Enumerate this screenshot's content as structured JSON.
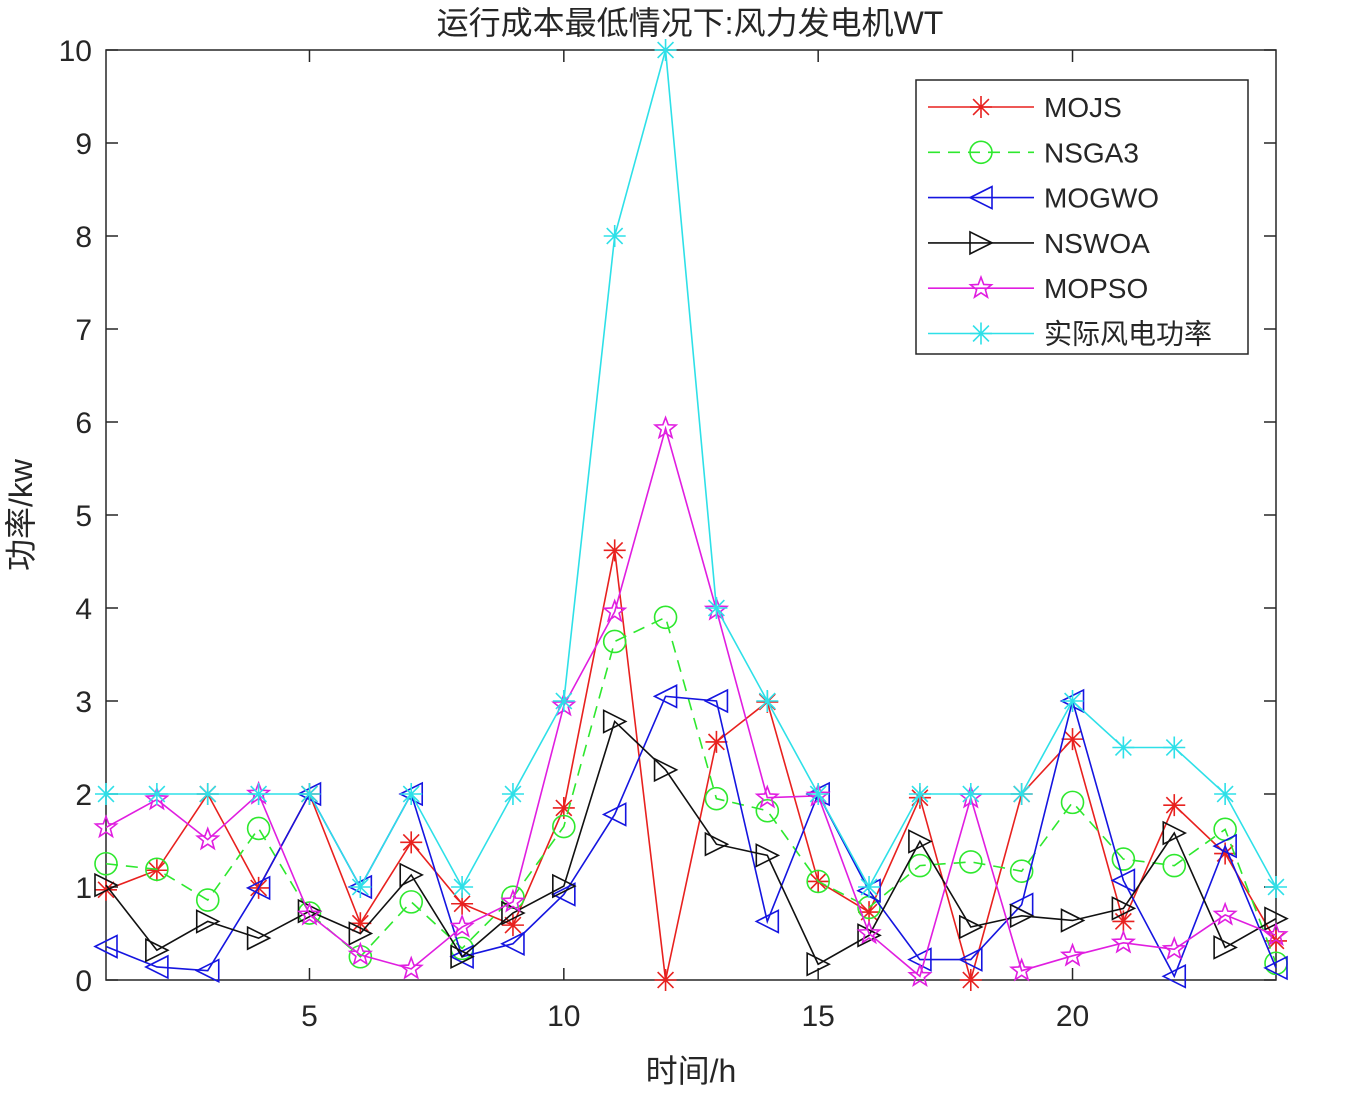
{
  "chart_data": {
    "type": "line",
    "title": "运行成本最低情况下:风力发电机WT",
    "xlabel": "时间/h",
    "ylabel": "功率/kw",
    "xlim": [
      1,
      24
    ],
    "ylim": [
      0,
      10
    ],
    "xticks": [
      5,
      10,
      15,
      20
    ],
    "yticks": [
      0,
      1,
      2,
      3,
      4,
      5,
      6,
      7,
      8,
      9,
      10
    ],
    "grid": false,
    "legend_position": "top-right",
    "x": [
      1,
      2,
      3,
      4,
      5,
      6,
      7,
      8,
      9,
      10,
      11,
      12,
      13,
      14,
      15,
      16,
      17,
      18,
      19,
      20,
      21,
      22,
      23,
      24
    ],
    "series": [
      {
        "name": "MOJS",
        "color": "#e8211f",
        "marker": "asterisk",
        "dash": "solid",
        "values": [
          0.97,
          1.18,
          2.0,
          0.99,
          2.0,
          0.61,
          1.48,
          0.82,
          0.59,
          1.85,
          4.62,
          0.0,
          2.56,
          2.99,
          1.06,
          0.73,
          1.96,
          0.0,
          2.0,
          2.59,
          0.63,
          1.88,
          1.36,
          0.42
        ]
      },
      {
        "name": "NSGA3",
        "color": "#2ee82e",
        "marker": "circle",
        "dash": "dashed",
        "values": [
          1.25,
          1.19,
          0.86,
          1.63,
          0.72,
          0.25,
          0.84,
          0.34,
          0.89,
          1.65,
          3.64,
          3.9,
          1.95,
          1.82,
          1.06,
          0.78,
          1.23,
          1.27,
          1.17,
          1.91,
          1.3,
          1.23,
          1.62,
          0.18
        ]
      },
      {
        "name": "MOGWO",
        "color": "#1515e0",
        "marker": "triangle-left",
        "dash": "solid",
        "values": [
          0.36,
          0.14,
          0.1,
          0.99,
          2.0,
          1.0,
          2.0,
          0.25,
          0.39,
          0.92,
          1.78,
          3.05,
          3.0,
          0.63,
          2.0,
          0.96,
          0.22,
          0.22,
          0.81,
          3.0,
          1.07,
          0.04,
          1.44,
          0.13
        ]
      },
      {
        "name": "NSWOA",
        "color": "#111111",
        "marker": "triangle-right",
        "dash": "solid",
        "values": [
          1.02,
          0.32,
          0.63,
          0.45,
          0.74,
          0.5,
          1.13,
          0.25,
          0.72,
          1.01,
          2.78,
          2.26,
          1.46,
          1.34,
          0.17,
          0.48,
          1.49,
          0.57,
          0.69,
          0.64,
          0.77,
          1.58,
          0.35,
          0.66
        ]
      },
      {
        "name": "MOPSO",
        "color": "#e01ee0",
        "marker": "star",
        "dash": "solid",
        "values": [
          1.64,
          1.94,
          1.51,
          2.0,
          0.7,
          0.27,
          0.12,
          0.57,
          0.84,
          2.95,
          3.96,
          5.93,
          3.98,
          1.96,
          1.98,
          0.5,
          0.04,
          1.96,
          0.1,
          0.26,
          0.4,
          0.33,
          0.7,
          0.48
        ]
      },
      {
        "name": "实际风电功率",
        "color": "#2ee0e8",
        "marker": "asterisk",
        "dash": "solid",
        "values": [
          2.0,
          2.0,
          2.0,
          2.0,
          2.0,
          1.0,
          2.0,
          1.0,
          2.0,
          3.0,
          8.0,
          10.0,
          4.0,
          3.0,
          2.0,
          1.0,
          2.0,
          2.0,
          2.0,
          3.0,
          2.5,
          2.5,
          2.0,
          1.0
        ]
      }
    ]
  }
}
